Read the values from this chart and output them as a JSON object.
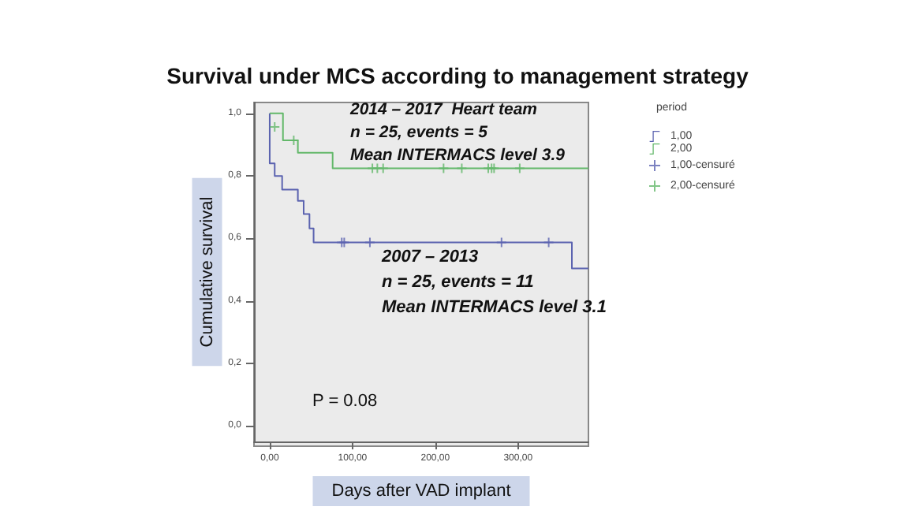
{
  "chart_data": {
    "type": "step",
    "title": "Survival under MCS according to management strategy",
    "xlabel": "Days after VAD implant",
    "ylabel": "Cumulative survival",
    "legend_title": "period",
    "annotations": [
      "2014 – 2017  Heart team\nn = 25, events = 5\nMean INTERMACS level 3.9",
      "2007 – 2013\nn = 25, events = 11\nMean INTERMACS level 3.1",
      "P = 0.08"
    ],
    "series": [
      {
        "name": "1,00",
        "color": "#5b63b0",
        "x": [
          0,
          0,
          6,
          15,
          34,
          41,
          48,
          53,
          365,
          385
        ],
        "values": [
          1.0,
          0.84,
          0.8,
          0.756,
          0.72,
          0.678,
          0.632,
          0.587,
          0.504,
          0.504
        ]
      },
      {
        "name": "2,00",
        "color": "#63b86a",
        "x": [
          0,
          16,
          34,
          76,
          385
        ],
        "values": [
          1.0,
          0.914,
          0.874,
          0.824,
          0.824
        ]
      },
      {
        "name": "1,00-censuré",
        "type": "scatter",
        "marker": "cross",
        "color": "#5b63b0",
        "x": [
          87,
          90,
          121,
          280,
          337
        ],
        "values": [
          0.587,
          0.587,
          0.587,
          0.587,
          0.587
        ]
      },
      {
        "name": "2,00-censuré",
        "type": "scatter",
        "marker": "cross",
        "color": "#63b86a",
        "x": [
          6,
          29,
          124,
          130,
          137,
          210,
          232,
          264,
          268,
          271,
          302
        ],
        "values": [
          0.957,
          0.914,
          0.824,
          0.824,
          0.824,
          0.824,
          0.824,
          0.824,
          0.824,
          0.824,
          0.824
        ]
      }
    ],
    "xlim": [
      -19,
      385
    ],
    "ylim": [
      -0.05,
      1.035
    ],
    "xticks": [
      {
        "value": 0,
        "label": "0,00"
      },
      {
        "value": 100,
        "label": "100,00"
      },
      {
        "value": 200,
        "label": "200,00"
      },
      {
        "value": 300,
        "label": "300,00"
      }
    ],
    "yticks": [
      {
        "value": 0,
        "label": "0,0"
      },
      {
        "value": 0.2,
        "label": "0,2"
      },
      {
        "value": 0.4,
        "label": "0,4"
      },
      {
        "value": 0.6,
        "label": "0,6"
      },
      {
        "value": 0.8,
        "label": "0,8"
      },
      {
        "value": 1.0,
        "label": "1,0"
      }
    ],
    "grid": false,
    "legend": "right"
  }
}
